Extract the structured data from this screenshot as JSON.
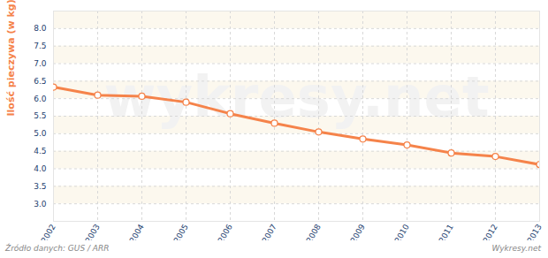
{
  "chart_data": {
    "type": "line",
    "y_label": "Ilość pieczywa (w kg)",
    "x": [
      2002,
      2003,
      2004,
      2005,
      2006,
      2007,
      2008,
      2009,
      2010,
      2011,
      2012,
      2013
    ],
    "values": [
      6.33,
      6.1,
      6.07,
      5.9,
      5.57,
      5.3,
      5.05,
      4.85,
      4.68,
      4.45,
      4.35,
      4.12
    ],
    "color": "#f5834a",
    "marker": "circle",
    "grid": true,
    "xlim": [
      2002,
      2013
    ],
    "xticks": [
      2002,
      2003,
      2004,
      2005,
      2006,
      2007,
      2008,
      2009,
      2010,
      2011,
      2012,
      2013
    ],
    "ylim": [
      2.5,
      8.5
    ],
    "yticks": [
      {
        "value": 3,
        "label": "3.0"
      },
      {
        "value": 3.5,
        "label": "3.5"
      },
      {
        "value": 4,
        "label": "4.0"
      },
      {
        "value": 4.5,
        "label": "4.5"
      },
      {
        "value": 5,
        "label": "5.0"
      },
      {
        "value": 5.5,
        "label": "5.5"
      },
      {
        "value": 6,
        "label": "6.0"
      },
      {
        "value": 6.5,
        "label": "6.5"
      },
      {
        "value": 7,
        "label": "7.0"
      },
      {
        "value": 7.5,
        "label": "7.5"
      },
      {
        "value": 8,
        "label": "8.0"
      }
    ],
    "annotations": [
      "Źródło danych: GUS / ARR",
      "Wykresy.net",
      "wykresy.net"
    ]
  }
}
